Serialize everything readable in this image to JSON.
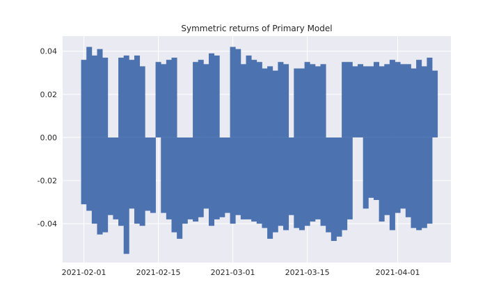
{
  "chart_data": {
    "type": "bar",
    "title": "Symmetric returns of Primary Model",
    "xlabel": "",
    "ylabel": "",
    "x_axis_type": "date",
    "xlim": [
      "2021-01-28",
      "2021-04-11"
    ],
    "ylim": [
      -0.058,
      0.047
    ],
    "x_ticks": [
      "2021-02-01",
      "2021-02-15",
      "2021-03-01",
      "2021-03-15",
      "2021-04-01"
    ],
    "y_ticks": [
      0.04,
      0.02,
      0.0,
      -0.02,
      -0.04
    ],
    "y_tick_labels": [
      "0.04",
      "0.02",
      "0.00",
      "-0.02",
      "-0.04"
    ],
    "grid": true,
    "style": "seaborn-darkgrid",
    "colors": {
      "bar": "#4c72b0",
      "plot_bg": "#eaeaf2",
      "grid": "#ffffff",
      "figure_bg": "#ffffff",
      "text": "#262626"
    },
    "series": [
      {
        "dates": [
          "2021-02-01",
          "2021-02-02",
          "2021-02-03",
          "2021-02-04",
          "2021-02-05",
          "2021-02-06",
          "2021-02-07",
          "2021-02-08",
          "2021-02-09",
          "2021-02-10",
          "2021-02-11",
          "2021-02-12",
          "2021-02-13",
          "2021-02-14",
          "2021-02-15",
          "2021-02-16",
          "2021-02-17",
          "2021-02-18",
          "2021-02-19",
          "2021-02-20",
          "2021-02-21",
          "2021-02-22",
          "2021-02-23",
          "2021-02-24",
          "2021-02-25",
          "2021-02-26",
          "2021-02-27",
          "2021-02-28",
          "2021-03-01",
          "2021-03-02",
          "2021-03-03",
          "2021-03-04",
          "2021-03-05",
          "2021-03-06",
          "2021-03-07",
          "2021-03-08",
          "2021-03-09",
          "2021-03-10",
          "2021-03-11",
          "2021-03-12",
          "2021-03-13",
          "2021-03-14",
          "2021-03-15",
          "2021-03-16",
          "2021-03-17",
          "2021-03-18",
          "2021-03-19",
          "2021-03-20",
          "2021-03-21",
          "2021-03-22",
          "2021-03-23",
          "2021-03-24",
          "2021-03-25",
          "2021-03-26",
          "2021-03-27",
          "2021-03-28",
          "2021-03-29",
          "2021-03-30",
          "2021-03-31",
          "2021-04-01",
          "2021-04-02",
          "2021-04-03",
          "2021-04-04",
          "2021-04-05",
          "2021-04-06",
          "2021-04-07",
          "2021-04-08"
        ],
        "positive": [
          0.036,
          0.042,
          0.038,
          0.041,
          0.037,
          0,
          0,
          0.037,
          0.038,
          0.036,
          0.038,
          0.033,
          0,
          0,
          0.035,
          0.034,
          0.036,
          0.037,
          0,
          0,
          0,
          0.035,
          0.036,
          0.034,
          0.039,
          0.038,
          0,
          0,
          0.042,
          0.041,
          0.034,
          0.038,
          0.036,
          0.035,
          0.032,
          0.033,
          0.031,
          0.035,
          0.034,
          0,
          0.032,
          0.032,
          0.035,
          0.034,
          0.033,
          0.034,
          0,
          0,
          0,
          0.035,
          0.035,
          0.033,
          0.034,
          0.033,
          0.033,
          0.035,
          0.033,
          0.034,
          0.036,
          0.035,
          0.034,
          0.034,
          0.032,
          0.036,
          0.033,
          0.037,
          0.031
        ],
        "negative": [
          -0.031,
          -0.034,
          -0.04,
          -0.045,
          -0.044,
          -0.036,
          -0.038,
          -0.041,
          -0.054,
          -0.033,
          -0.04,
          -0.041,
          -0.034,
          -0.035,
          0,
          -0.035,
          -0.038,
          -0.044,
          -0.047,
          -0.04,
          -0.038,
          -0.039,
          -0.037,
          -0.033,
          -0.041,
          -0.038,
          -0.037,
          -0.035,
          -0.04,
          -0.036,
          -0.038,
          -0.038,
          -0.039,
          -0.04,
          -0.042,
          -0.047,
          -0.044,
          -0.041,
          -0.043,
          -0.036,
          -0.042,
          -0.043,
          -0.041,
          -0.039,
          -0.038,
          -0.041,
          -0.044,
          -0.048,
          -0.046,
          -0.043,
          -0.038,
          0,
          0,
          -0.033,
          -0.028,
          -0.029,
          -0.039,
          -0.036,
          -0.043,
          -0.035,
          -0.033,
          -0.037,
          -0.042,
          -0.043,
          -0.042,
          -0.04,
          0
        ]
      }
    ]
  }
}
